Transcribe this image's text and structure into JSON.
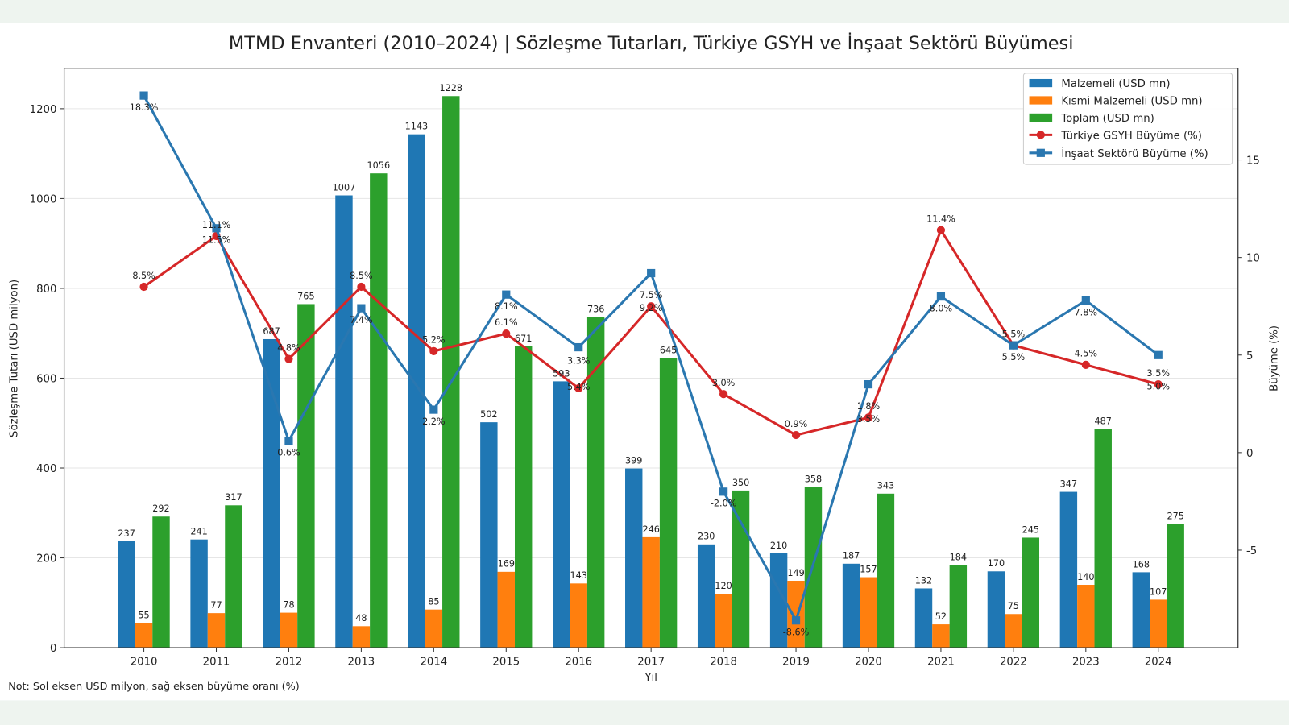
{
  "chart_data": {
    "type": "bar+line",
    "title": "MTMD Envanteri (2010–2024) | Sözleşme Tutarları, Türkiye GSYH ve İnşaat Sektörü Büyümesi",
    "xlabel": "Yıl",
    "ylabel": "Sözleşme Tutarı (USD milyon)",
    "y2label": "Büyüme (%)",
    "note": "Not: Sol eksen USD milyon, sağ eksen büyüme oranı (%)",
    "categories": [
      "2010",
      "2011",
      "2012",
      "2013",
      "2014",
      "2015",
      "2016",
      "2017",
      "2018",
      "2019",
      "2020",
      "2021",
      "2022",
      "2023",
      "2024"
    ],
    "ylim": [
      0,
      1290
    ],
    "y_ticks": [
      0,
      200,
      400,
      600,
      800,
      1000,
      1200
    ],
    "y2lim": [
      -10,
      19.7
    ],
    "y2_ticks": [
      -5,
      0,
      5,
      10,
      15
    ],
    "grid": "horizontal",
    "legend_position": "top-right",
    "bar_series": [
      {
        "name": "Malzemeli (USD mn)",
        "color": "#1f77b4",
        "values": [
          237,
          241,
          687,
          1007,
          1143,
          502,
          593,
          399,
          230,
          210,
          187,
          132,
          170,
          347,
          168
        ]
      },
      {
        "name": "Kısmi Malzemeli (USD mn)",
        "color": "#ff7f0e",
        "values": [
          55,
          77,
          78,
          48,
          85,
          169,
          143,
          246,
          120,
          149,
          157,
          52,
          75,
          140,
          107
        ]
      },
      {
        "name": "Toplam (USD mn)",
        "color": "#2ca02c",
        "values": [
          292,
          317,
          765,
          1056,
          1228,
          671,
          736,
          645,
          350,
          358,
          343,
          184,
          245,
          487,
          275
        ]
      }
    ],
    "line_series": [
      {
        "name": "Türkiye GSYH Büyüme (%)",
        "color": "#d62728",
        "marker": "circle",
        "values": [
          8.5,
          11.1,
          4.8,
          8.5,
          5.2,
          6.1,
          3.3,
          7.5,
          3.0,
          0.9,
          1.8,
          11.4,
          5.5,
          4.5,
          3.5
        ]
      },
      {
        "name": "İnşaat Sektörü Büyüme (%)",
        "color": "#2a77b0",
        "marker": "square",
        "values": [
          18.3,
          11.5,
          0.6,
          7.4,
          2.2,
          8.1,
          5.4,
          9.2,
          -2.0,
          -8.6,
          3.5,
          8.0,
          5.5,
          7.8,
          5.0
        ]
      }
    ]
  }
}
